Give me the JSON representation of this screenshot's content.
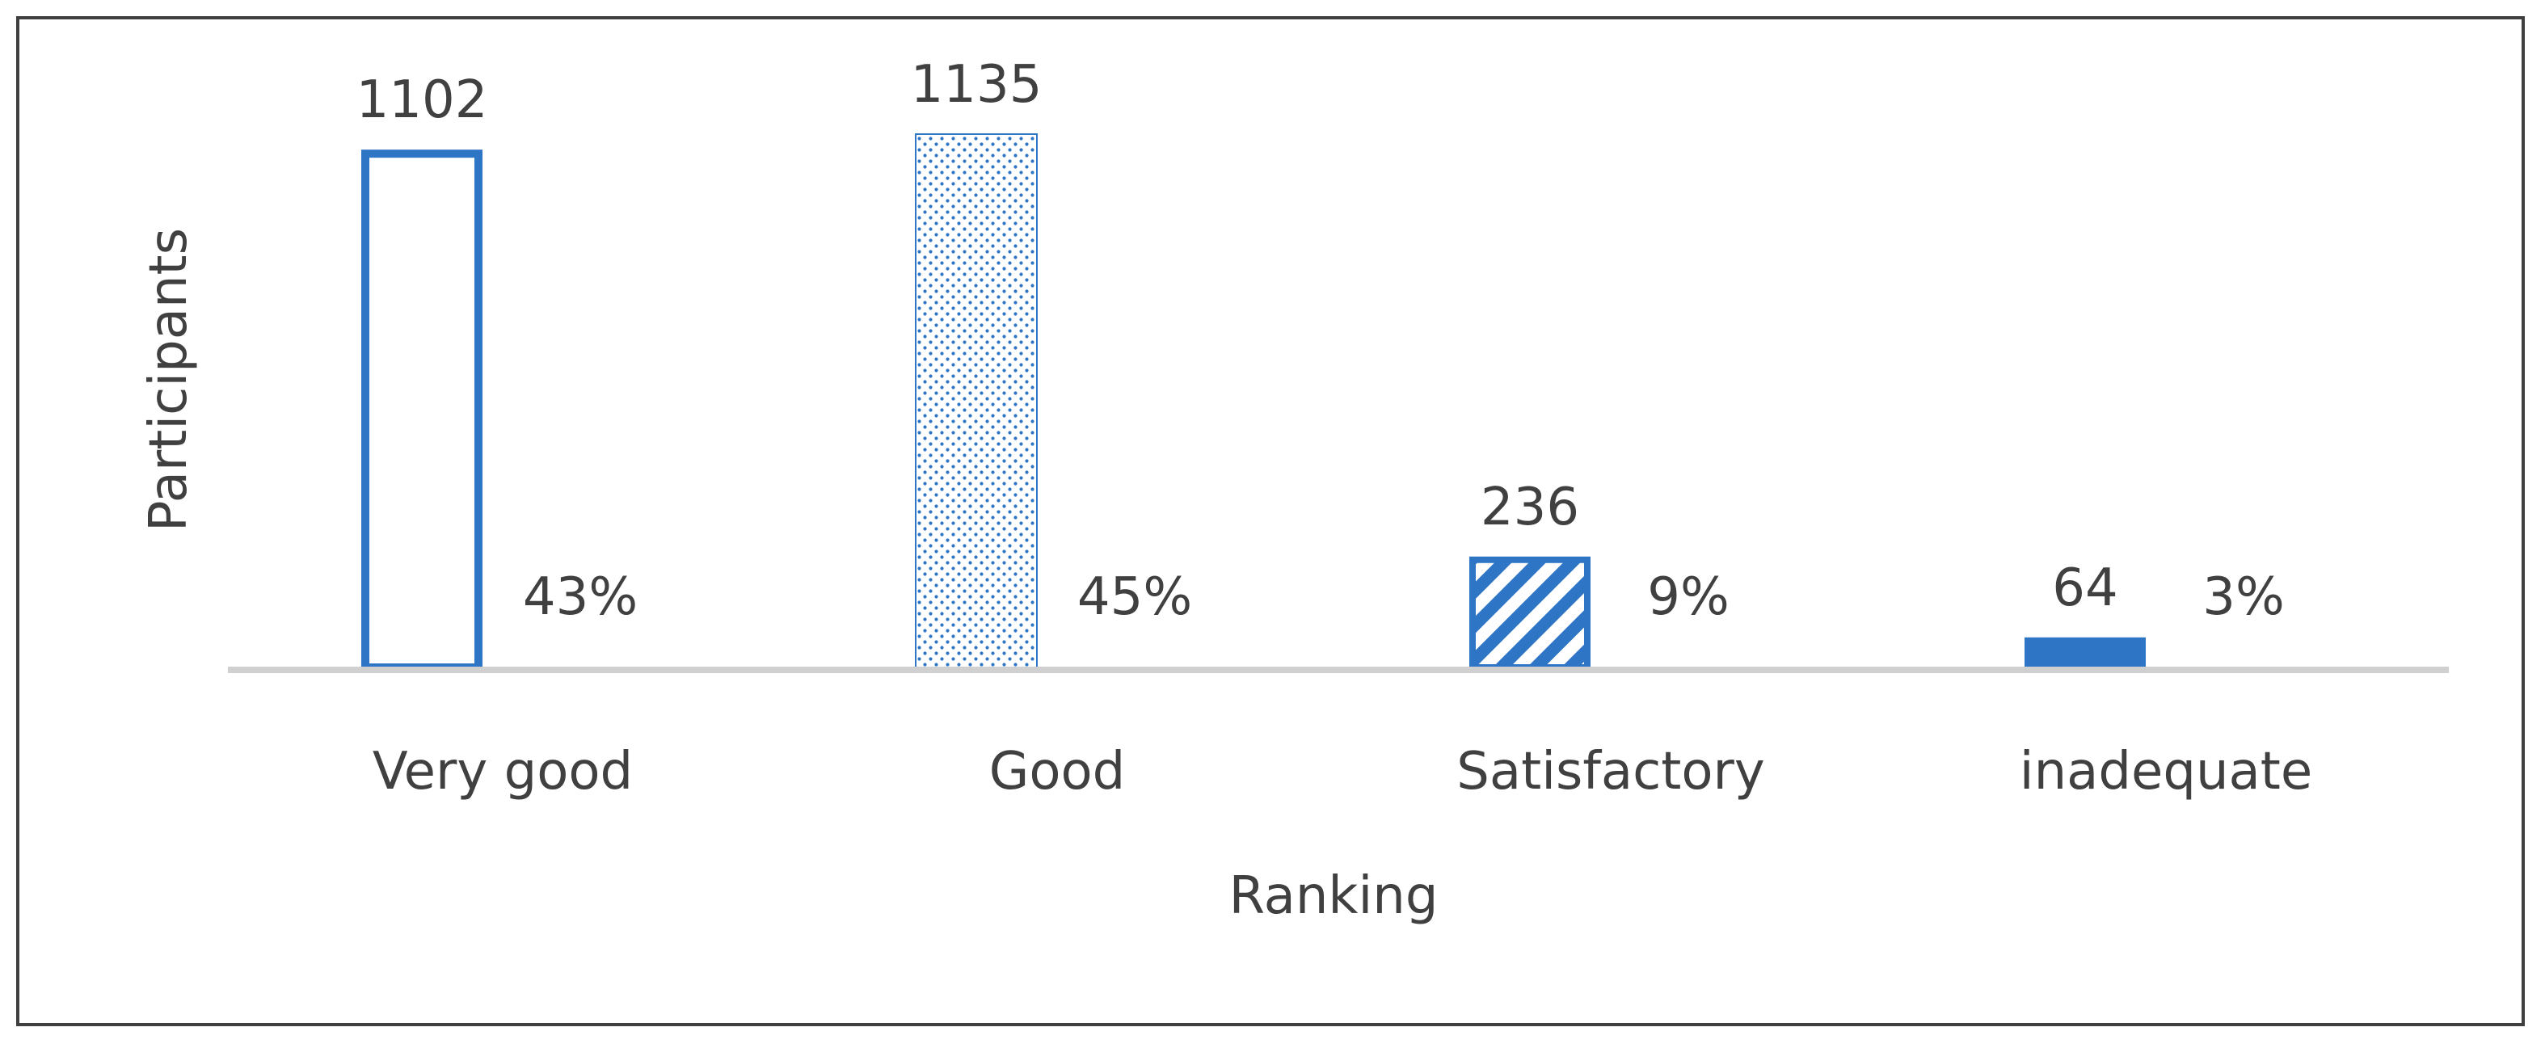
{
  "chart_data": {
    "type": "bar",
    "title": "",
    "xlabel": "Ranking",
    "ylabel": "Participants",
    "categories": [
      "Very good",
      "Good",
      "Satisfactory",
      "inadequate"
    ],
    "values": [
      1102,
      1135,
      236,
      64
    ],
    "percent_labels": [
      "43%",
      "45%",
      "9%",
      "3%"
    ],
    "value_labels": [
      "1102",
      "1135",
      "236",
      "64"
    ],
    "fill_styles": [
      "outline",
      "dotted",
      "diagonal-stripes",
      "solid"
    ],
    "ylim": [
      0,
      1135
    ],
    "grid": false,
    "legend": "none",
    "colors": {
      "bar": "#2e75c6",
      "axis": "#d0d0d0",
      "text": "#404040",
      "frame": "#3f3f3f"
    }
  }
}
